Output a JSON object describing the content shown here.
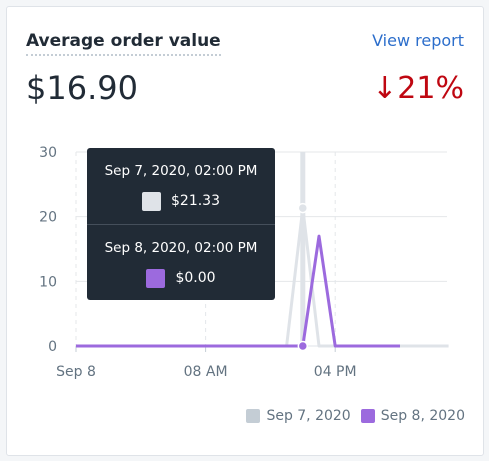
{
  "card": {
    "title": "Average order value",
    "view_report": "View report",
    "value": "$16.90",
    "change": "↓21%"
  },
  "colors": {
    "primary_series": "#9c6ade",
    "comparison_series": "#dfe3e8",
    "link": "#2c6ecb",
    "negative": "#bf0711"
  },
  "tooltip": {
    "entries": [
      {
        "date": "Sep 7, 2020, 02:00 PM",
        "value": "$21.33",
        "color": "#dfe3e8"
      },
      {
        "date": "Sep 8, 2020, 02:00 PM",
        "value": "$0.00",
        "color": "#9c6ade"
      }
    ]
  },
  "legend": {
    "items": [
      {
        "label": "Sep 7, 2020",
        "color": "#c4cdd5"
      },
      {
        "label": "Sep 8, 2020",
        "color": "#9c6ade"
      }
    ]
  },
  "chart_data": {
    "type": "line",
    "x": [
      "00:00",
      "01:00",
      "02:00",
      "03:00",
      "04:00",
      "05:00",
      "06:00",
      "07:00",
      "08:00",
      "09:00",
      "10:00",
      "11:00",
      "12:00",
      "13:00",
      "14:00",
      "15:00",
      "16:00",
      "17:00",
      "18:00",
      "19:00",
      "20:00",
      "21:00",
      "22:00",
      "23:00"
    ],
    "x_tick_labels": [
      "Sep 8",
      "08 AM",
      "04 PM"
    ],
    "y_tick_labels": [
      "0",
      "10",
      "20",
      "30"
    ],
    "ylim": [
      0,
      30
    ],
    "grid": true,
    "legend_position": "bottom-right",
    "series": [
      {
        "name": "Sep 8, 2020",
        "values": [
          0,
          0,
          0,
          0,
          0,
          0,
          0,
          0,
          0,
          0,
          0,
          0,
          0,
          0,
          0,
          17,
          0,
          0,
          0,
          0,
          0,
          0,
          0,
          0
        ]
      },
      {
        "name": "Sep 7, 2020",
        "values": [
          0,
          0,
          0,
          0,
          0,
          0,
          0,
          0,
          0,
          0,
          0,
          0,
          0,
          0,
          21.33,
          0,
          0,
          0,
          0,
          0,
          0,
          0,
          0,
          0
        ]
      }
    ],
    "highlighted_index": 14
  }
}
